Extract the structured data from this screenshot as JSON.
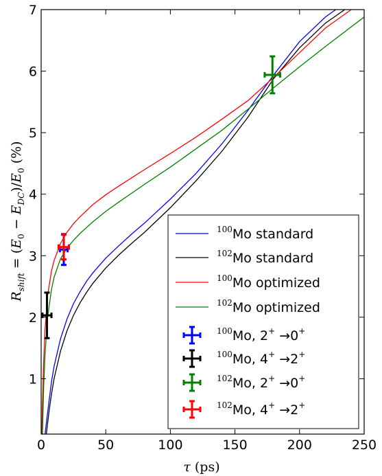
{
  "chart_data": {
    "type": "line",
    "xlabel": "τ (ps)",
    "ylabel": "R_shift = (E_0 − E_DC)/E_0 (%)",
    "xlim": [
      0,
      250
    ],
    "ylim": [
      0.1,
      7
    ],
    "x_ticks": [
      "0",
      "50",
      "100",
      "150",
      "200",
      "250"
    ],
    "y_ticks": [
      "1",
      "2",
      "3",
      "4",
      "5",
      "6",
      "7"
    ],
    "grid": false,
    "legend_position": "lower-right",
    "series": [
      {
        "name": "100Mo standard",
        "color": "#0000ff",
        "x": [
          3,
          5,
          8,
          10,
          15,
          20,
          25,
          30,
          35,
          40,
          50,
          60,
          70,
          80,
          100,
          120,
          140,
          160,
          180,
          200,
          220,
          228
        ],
        "y": [
          0.1,
          0.45,
          0.95,
          1.2,
          1.65,
          1.97,
          2.22,
          2.41,
          2.58,
          2.72,
          2.96,
          3.16,
          3.35,
          3.53,
          3.92,
          4.34,
          4.82,
          5.36,
          5.94,
          6.48,
          6.88,
          7.0
        ]
      },
      {
        "name": "102Mo standard",
        "color": "#000000",
        "x": [
          4,
          6,
          8,
          10,
          15,
          20,
          25,
          30,
          35,
          40,
          50,
          60,
          70,
          80,
          100,
          120,
          140,
          160,
          180,
          200,
          220,
          235
        ],
        "y": [
          0.1,
          0.45,
          0.75,
          1.0,
          1.45,
          1.78,
          2.03,
          2.23,
          2.4,
          2.55,
          2.8,
          3.01,
          3.2,
          3.38,
          3.78,
          4.22,
          4.7,
          5.25,
          5.88,
          6.38,
          6.78,
          7.0
        ]
      },
      {
        "name": "100Mo optimized",
        "color": "#ff0000",
        "x": [
          0.5,
          1,
          2,
          3,
          5,
          8,
          10,
          15,
          20,
          25,
          30,
          40,
          50,
          60,
          80,
          100,
          120,
          140,
          160,
          180,
          200,
          220,
          240
        ],
        "y": [
          0.1,
          0.6,
          1.3,
          1.8,
          2.35,
          2.75,
          2.92,
          3.2,
          3.38,
          3.52,
          3.63,
          3.83,
          3.99,
          4.13,
          4.4,
          4.66,
          4.93,
          5.22,
          5.52,
          5.9,
          6.3,
          6.7,
          7.0
        ]
      },
      {
        "name": "102Mo optimized",
        "color": "#008000",
        "x": [
          1,
          2,
          3,
          5,
          8,
          10,
          15,
          20,
          25,
          30,
          40,
          50,
          60,
          80,
          100,
          120,
          140,
          160,
          180,
          200,
          220,
          250
        ],
        "y": [
          0.1,
          0.9,
          1.4,
          2.0,
          2.45,
          2.65,
          2.95,
          3.12,
          3.25,
          3.36,
          3.55,
          3.72,
          3.87,
          4.16,
          4.44,
          4.74,
          5.04,
          5.38,
          5.73,
          6.07,
          6.4,
          6.88
        ]
      }
    ],
    "errorbars": [
      {
        "name": "100Mo, 2+ →0+",
        "label_base": "Mo, 2",
        "label_mid": " →0",
        "mass": "100",
        "color": "#0000ff",
        "x": 17.5,
        "xerr": 3,
        "y": 3.1,
        "yerr": 0.25
      },
      {
        "name": "100Mo, 4+ →2+",
        "label_base": "Mo, 4",
        "label_mid": " →2",
        "mass": "100",
        "color": "#000000",
        "x": 4.5,
        "xerr": 3.5,
        "y": 2.03,
        "yerr": 0.37
      },
      {
        "name": "102Mo, 2+ →0+",
        "label_base": "Mo, 2",
        "label_mid": " →0",
        "mass": "102",
        "color": "#008000",
        "x": 179,
        "xerr": 6,
        "y": 5.94,
        "yerr": 0.3
      },
      {
        "name": "102Mo, 4+ →2+",
        "label_base": "Mo, 4",
        "label_mid": " →2",
        "mass": "102",
        "color": "#ff0000",
        "x": 17.5,
        "xerr": 4,
        "y": 3.14,
        "yerr": 0.2
      }
    ],
    "line_legend": [
      {
        "mass": "100",
        "text": "Mo standard"
      },
      {
        "mass": "102",
        "text": "Mo standard"
      },
      {
        "mass": "100",
        "text": "Mo optimized"
      },
      {
        "mass": "102",
        "text": "Mo optimized"
      }
    ]
  }
}
